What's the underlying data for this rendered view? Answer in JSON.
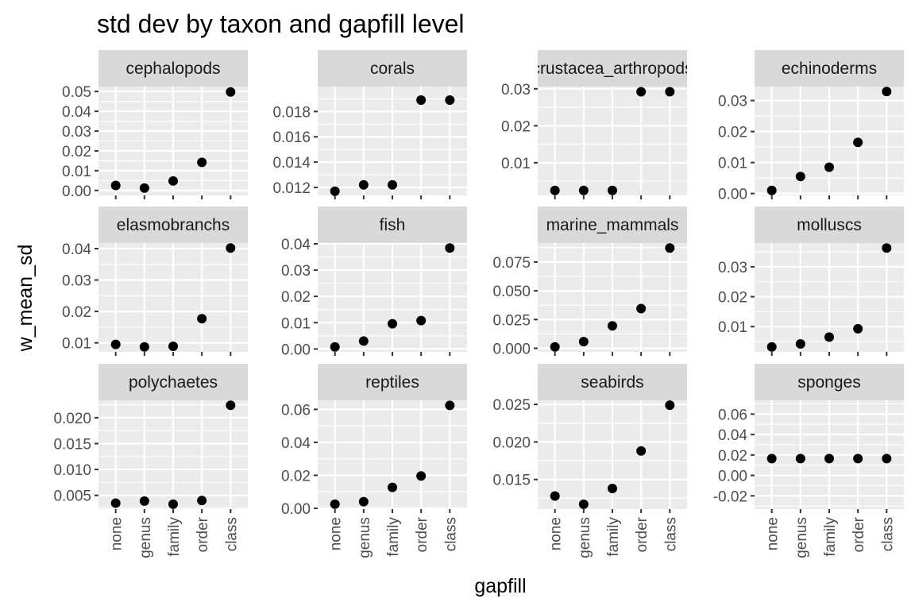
{
  "chart_data": {
    "type": "scatter",
    "title": "std dev by taxon and gapfill level",
    "xlabel": "gapfill",
    "ylabel": "w_mean_sd",
    "categories": [
      "none",
      "genus",
      "family",
      "order",
      "class"
    ],
    "grid": true,
    "facets": [
      {
        "name": "cephalopods",
        "values": [
          0.0025,
          0.0012,
          0.0048,
          0.0142,
          0.0498
        ],
        "ylim": [
          -0.0025,
          0.0525
        ],
        "ticks": [
          0,
          0.01,
          0.02,
          0.03,
          0.04,
          0.05
        ],
        "tick_labels": [
          "0.00",
          "0.01",
          "0.02",
          "0.03",
          "0.04",
          "0.05"
        ]
      },
      {
        "name": "corals",
        "values": [
          0.0117,
          0.0122,
          0.0122,
          0.0189,
          0.0189
        ],
        "ylim": [
          0.01137,
          0.01997
        ],
        "ticks": [
          0.012,
          0.014,
          0.016,
          0.018
        ],
        "tick_labels": [
          "0.012",
          "0.014",
          "0.016",
          "0.018"
        ]
      },
      {
        "name": "crustacea_arthropods",
        "values": [
          0.0025,
          0.0025,
          0.0025,
          0.0292,
          0.0292
        ],
        "ylim": [
          0.00116,
          0.0306
        ],
        "ticks": [
          0.01,
          0.02,
          0.03
        ],
        "tick_labels": [
          "0.01",
          "0.02",
          "0.03"
        ]
      },
      {
        "name": "echinoderms",
        "values": [
          0.001,
          0.0055,
          0.0085,
          0.0165,
          0.0329
        ],
        "ylim": [
          -0.0006,
          0.0345
        ],
        "ticks": [
          0,
          0.01,
          0.02,
          0.03
        ],
        "tick_labels": [
          "0.00",
          "0.01",
          "0.02",
          "0.03"
        ]
      },
      {
        "name": "elasmobranchs",
        "values": [
          0.0095,
          0.0087,
          0.0089,
          0.0177,
          0.0402
        ],
        "ylim": [
          0.00713,
          0.04177
        ],
        "ticks": [
          0.01,
          0.02,
          0.03,
          0.04
        ],
        "tick_labels": [
          "0.01",
          "0.02",
          "0.03",
          "0.04"
        ]
      },
      {
        "name": "fish",
        "values": [
          0.0008,
          0.003,
          0.0096,
          0.0108,
          0.0384
        ],
        "ylim": [
          -0.0011,
          0.0403
        ],
        "ticks": [
          0,
          0.01,
          0.02,
          0.03,
          0.04
        ],
        "tick_labels": [
          "0.00",
          "0.01",
          "0.02",
          "0.03",
          "0.04"
        ]
      },
      {
        "name": "marine_mammals",
        "values": [
          0.0012,
          0.0058,
          0.0195,
          0.0345,
          0.0872
        ],
        "ylim": [
          -0.0031,
          0.0915
        ],
        "ticks": [
          0,
          0.025,
          0.05,
          0.075
        ],
        "tick_labels": [
          "0.000",
          "0.025",
          "0.050",
          "0.075"
        ]
      },
      {
        "name": "molluscs",
        "values": [
          0.0032,
          0.0042,
          0.0065,
          0.0093,
          0.0363
        ],
        "ylim": [
          0.00155,
          0.03795
        ],
        "ticks": [
          0.01,
          0.02,
          0.03
        ],
        "tick_labels": [
          "0.01",
          "0.02",
          "0.03"
        ]
      },
      {
        "name": "polychaetes",
        "values": [
          0.0035,
          0.0039,
          0.0033,
          0.004,
          0.0224
        ],
        "ylim": [
          0.00234,
          0.02336
        ],
        "ticks": [
          0.005,
          0.01,
          0.015,
          0.02
        ],
        "tick_labels": [
          "0.005",
          "0.010",
          "0.015",
          "0.020"
        ]
      },
      {
        "name": "reptiles",
        "values": [
          0.0025,
          0.004,
          0.0127,
          0.0196,
          0.0624
        ],
        "ylim": [
          -0.0005,
          0.0655
        ],
        "ticks": [
          0,
          0.02,
          0.04,
          0.06
        ],
        "tick_labels": [
          "0.00",
          "0.02",
          "0.04",
          "0.06"
        ]
      },
      {
        "name": "seabirds",
        "values": [
          0.0128,
          0.0117,
          0.0138,
          0.0188,
          0.0249
        ],
        "ylim": [
          0.01105,
          0.02555
        ],
        "ticks": [
          0.015,
          0.02,
          0.025
        ],
        "tick_labels": [
          "0.015",
          "0.020",
          "0.025"
        ]
      },
      {
        "name": "sponges",
        "values": [
          0.0165,
          0.0165,
          0.0165,
          0.0165,
          0.0165
        ],
        "ylim": [
          -0.033,
          0.0735
        ],
        "ticks": [
          -0.02,
          0,
          0.02,
          0.04,
          0.06
        ],
        "tick_labels": [
          "-0.02",
          "0.00",
          "0.02",
          "0.04",
          "0.06"
        ]
      }
    ]
  }
}
